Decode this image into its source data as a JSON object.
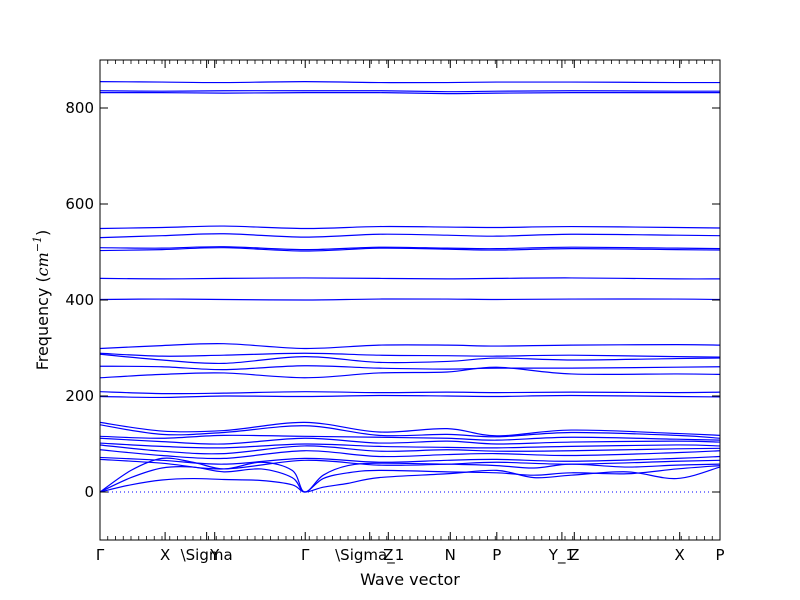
{
  "chart_data": {
    "type": "line",
    "title": "",
    "xlabel": "Wave vector",
    "ylabel": "Frequency ($cm^{-1}$)",
    "ylabel_parts": {
      "text": "Frequency (",
      "unit_base": "cm",
      "unit_exp": "−1",
      "close": ")"
    },
    "ylim": [
      -100,
      900
    ],
    "xlim": [
      0,
      1
    ],
    "y_ticks": [
      0,
      200,
      400,
      600,
      800
    ],
    "x_ticks": [
      {
        "label": "Γ",
        "x": 0.0
      },
      {
        "label": "X",
        "x": 0.105
      },
      {
        "label": "\\Sigma",
        "x": 0.172
      },
      {
        "label": "Y",
        "x": 0.185
      },
      {
        "label": "Γ",
        "x": 0.331
      },
      {
        "label": "\\Sigma_1",
        "x": 0.435
      },
      {
        "label": "Z",
        "x": 0.465
      },
      {
        "label": "N",
        "x": 0.565
      },
      {
        "label": "P",
        "x": 0.64
      },
      {
        "label": "Y_1",
        "x": 0.745
      },
      {
        "label": "Z",
        "x": 0.765
      },
      {
        "label": "X",
        "x": 0.935
      },
      {
        "label": "P",
        "x": 1.0
      }
    ],
    "zero_line": true,
    "grid": false,
    "series_color": "#0000ff",
    "zero_line_color": "#0000ff",
    "series": [
      {
        "x": [
          0,
          0.1,
          0.2,
          0.33,
          0.45,
          0.56,
          0.64,
          0.76,
          0.93,
          1.0
        ],
        "y": [
          855,
          854,
          853,
          855,
          853,
          853,
          854,
          854,
          853,
          853
        ]
      },
      {
        "x": [
          0,
          0.1,
          0.2,
          0.33,
          0.45,
          0.56,
          0.64,
          0.76,
          0.93,
          1.0
        ],
        "y": [
          836,
          835,
          836,
          836,
          836,
          834,
          835,
          836,
          835,
          835
        ]
      },
      {
        "x": [
          0,
          0.1,
          0.2,
          0.33,
          0.45,
          0.56,
          0.64,
          0.76,
          0.93,
          1.0
        ],
        "y": [
          832,
          832,
          831,
          832,
          832,
          830,
          831,
          832,
          832,
          832
        ]
      },
      {
        "x": [
          0,
          0.1,
          0.2,
          0.33,
          0.45,
          0.56,
          0.64,
          0.76,
          0.93,
          1.0
        ],
        "y": [
          549,
          551,
          554,
          549,
          553,
          552,
          551,
          553,
          551,
          550
        ]
      },
      {
        "x": [
          0,
          0.1,
          0.2,
          0.33,
          0.45,
          0.56,
          0.64,
          0.76,
          0.93,
          1.0
        ],
        "y": [
          530,
          534,
          538,
          531,
          537,
          535,
          533,
          537,
          535,
          534
        ]
      },
      {
        "x": [
          0,
          0.1,
          0.2,
          0.33,
          0.45,
          0.56,
          0.64,
          0.76,
          0.93,
          1.0
        ],
        "y": [
          509,
          508,
          511,
          505,
          510,
          508,
          507,
          510,
          508,
          507
        ]
      },
      {
        "x": [
          0,
          0.1,
          0.2,
          0.33,
          0.45,
          0.56,
          0.64,
          0.76,
          0.93,
          1.0
        ],
        "y": [
          503,
          505,
          509,
          502,
          508,
          506,
          504,
          507,
          505,
          504
        ]
      },
      {
        "x": [
          0,
          0.1,
          0.2,
          0.33,
          0.45,
          0.56,
          0.64,
          0.76,
          0.93,
          1.0
        ],
        "y": [
          445,
          444,
          445,
          446,
          445,
          444,
          445,
          446,
          444,
          444
        ]
      },
      {
        "x": [
          0,
          0.1,
          0.2,
          0.33,
          0.45,
          0.56,
          0.64,
          0.76,
          0.93,
          1.0
        ],
        "y": [
          401,
          402,
          401,
          400,
          402,
          402,
          401,
          402,
          402,
          401
        ]
      },
      {
        "x": [
          0,
          0.1,
          0.2,
          0.33,
          0.45,
          0.56,
          0.64,
          0.76,
          0.93,
          1.0
        ],
        "y": [
          299,
          305,
          309,
          299,
          306,
          306,
          304,
          306,
          307,
          306
        ]
      },
      {
        "x": [
          0,
          0.1,
          0.2,
          0.33,
          0.45,
          0.56,
          0.64,
          0.76,
          0.93,
          1.0
        ],
        "y": [
          289,
          283,
          285,
          289,
          285,
          284,
          283,
          285,
          282,
          281
        ]
      },
      {
        "x": [
          0,
          0.1,
          0.2,
          0.33,
          0.45,
          0.56,
          0.64,
          0.76,
          0.93,
          1.0
        ],
        "y": [
          287,
          275,
          268,
          282,
          270,
          272,
          279,
          275,
          278,
          279
        ]
      },
      {
        "x": [
          0,
          0.1,
          0.2,
          0.33,
          0.45,
          0.56,
          0.64,
          0.76,
          0.93,
          1.0
        ],
        "y": [
          262,
          261,
          255,
          263,
          258,
          256,
          258,
          258,
          260,
          261
        ]
      },
      {
        "x": [
          0,
          0.1,
          0.2,
          0.33,
          0.45,
          0.56,
          0.64,
          0.76,
          0.93,
          1.0
        ],
        "y": [
          238,
          245,
          248,
          238,
          248,
          250,
          260,
          246,
          246,
          245
        ]
      },
      {
        "x": [
          0,
          0.1,
          0.2,
          0.33,
          0.45,
          0.56,
          0.64,
          0.76,
          0.93,
          1.0
        ],
        "y": [
          209,
          205,
          206,
          209,
          207,
          208,
          207,
          208,
          207,
          208
        ]
      },
      {
        "x": [
          0,
          0.1,
          0.2,
          0.33,
          0.45,
          0.56,
          0.64,
          0.76,
          0.93,
          1.0
        ],
        "y": [
          199,
          197,
          200,
          199,
          201,
          200,
          199,
          201,
          199,
          198
        ]
      },
      {
        "x": [
          0,
          0.1,
          0.2,
          0.33,
          0.45,
          0.56,
          0.64,
          0.76,
          0.93,
          1.0
        ],
        "y": [
          145,
          127,
          128,
          145,
          125,
          132,
          117,
          129,
          122,
          118
        ]
      },
      {
        "x": [
          0,
          0.1,
          0.2,
          0.33,
          0.45,
          0.56,
          0.64,
          0.76,
          0.93,
          1.0
        ],
        "y": [
          140,
          120,
          124,
          138,
          118,
          120,
          115,
          124,
          118,
          112
        ]
      },
      {
        "x": [
          0,
          0.1,
          0.2,
          0.33,
          0.45,
          0.56,
          0.64,
          0.76,
          0.93,
          1.0
        ],
        "y": [
          116,
          112,
          118,
          116,
          114,
          112,
          108,
          114,
          110,
          108
        ]
      },
      {
        "x": [
          0,
          0.1,
          0.2,
          0.33,
          0.45,
          0.56,
          0.64,
          0.76,
          0.93,
          1.0
        ],
        "y": [
          112,
          105,
          100,
          112,
          102,
          106,
          100,
          104,
          106,
          104
        ]
      },
      {
        "x": [
          0,
          0.1,
          0.2,
          0.33,
          0.45,
          0.56,
          0.64,
          0.76,
          0.93,
          1.0
        ],
        "y": [
          102,
          95,
          92,
          100,
          95,
          93,
          92,
          95,
          98,
          96
        ]
      },
      {
        "x": [
          0,
          0.1,
          0.2,
          0.33,
          0.45,
          0.56,
          0.64,
          0.76,
          0.93,
          1.0
        ],
        "y": [
          98,
          85,
          80,
          96,
          85,
          88,
          85,
          86,
          90,
          91
        ]
      },
      {
        "x": [
          0,
          0.1,
          0.2,
          0.33,
          0.45,
          0.56,
          0.64,
          0.76,
          0.93,
          1.0
        ],
        "y": [
          88,
          76,
          70,
          86,
          74,
          78,
          80,
          76,
          82,
          86
        ]
      },
      {
        "x": [
          0,
          0.1,
          0.2,
          0.33,
          0.45,
          0.56,
          0.64,
          0.76,
          0.93,
          1.0
        ],
        "y": [
          72,
          66,
          58,
          70,
          62,
          66,
          68,
          64,
          70,
          74
        ]
      },
      {
        "x": [
          0,
          0.1,
          0.2,
          0.33,
          0.45,
          0.56,
          0.64,
          0.76,
          0.93,
          1.0
        ],
        "y": [
          68,
          60,
          48,
          66,
          56,
          58,
          62,
          58,
          64,
          66
        ]
      },
      {
        "x": [
          0,
          0.05,
          0.1,
          0.15,
          0.2,
          0.26,
          0.31,
          0.33,
          0.36,
          0.4,
          0.45,
          0.56,
          0.64,
          0.7,
          0.76,
          0.85,
          0.93,
          1.0
        ],
        "y": [
          0,
          45,
          70,
          62,
          48,
          62,
          45,
          0,
          35,
          55,
          60,
          58,
          55,
          50,
          58,
          52,
          56,
          58
        ]
      },
      {
        "x": [
          0,
          0.05,
          0.1,
          0.15,
          0.2,
          0.26,
          0.31,
          0.33,
          0.36,
          0.4,
          0.45,
          0.56,
          0.64,
          0.7,
          0.76,
          0.85,
          0.93,
          1.0
        ],
        "y": [
          0,
          30,
          50,
          52,
          42,
          48,
          30,
          0,
          28,
          40,
          45,
          42,
          40,
          35,
          40,
          38,
          48,
          55
        ]
      },
      {
        "x": [
          0,
          0.05,
          0.1,
          0.15,
          0.2,
          0.26,
          0.31,
          0.33,
          0.36,
          0.4,
          0.45,
          0.56,
          0.64,
          0.7,
          0.76,
          0.85,
          0.93,
          1.0
        ],
        "y": [
          0,
          15,
          25,
          28,
          26,
          24,
          15,
          0,
          10,
          18,
          30,
          38,
          45,
          30,
          35,
          42,
          28,
          52
        ]
      }
    ]
  }
}
